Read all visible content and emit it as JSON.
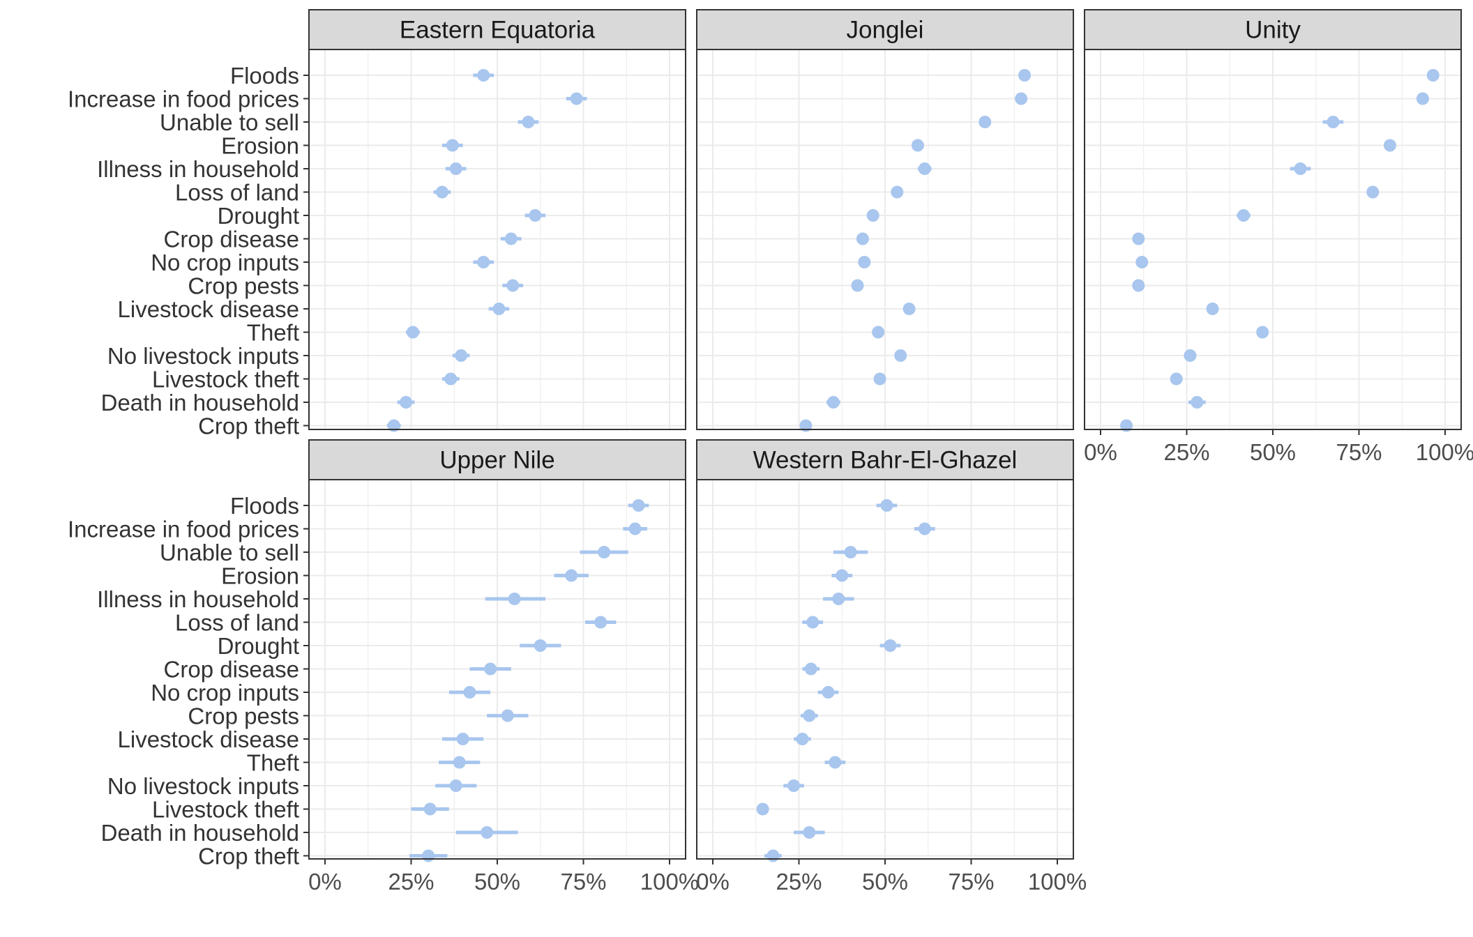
{
  "chart_data": {
    "type": "dot-errorbar-faceted",
    "title": "",
    "xlabel": "",
    "ylabel": "",
    "xlim": [
      0,
      1
    ],
    "x_ticks": [
      "0%",
      "25%",
      "50%",
      "75%",
      "100%"
    ],
    "grid": true,
    "point_color": "#A8C6EE",
    "categories": [
      "Floods",
      "Increase in food prices",
      "Unable to sell",
      "Erosion",
      "Illness in household",
      "Loss of land",
      "Drought",
      "Crop disease",
      "No crop inputs",
      "Crop pests",
      "Livestock disease",
      "Theft",
      "No livestock inputs",
      "Livestock theft",
      "Death in household",
      "Crop theft"
    ],
    "panels": [
      {
        "name": "Eastern Equatoria",
        "values": [
          0.46,
          0.73,
          0.59,
          0.37,
          0.38,
          0.34,
          0.61,
          0.54,
          0.46,
          0.545,
          0.505,
          0.255,
          0.395,
          0.365,
          0.235,
          0.2
        ],
        "lower": [
          0.43,
          0.7,
          0.56,
          0.34,
          0.35,
          0.315,
          0.58,
          0.51,
          0.43,
          0.515,
          0.475,
          0.235,
          0.37,
          0.34,
          0.21,
          0.18
        ],
        "upper": [
          0.49,
          0.76,
          0.62,
          0.4,
          0.41,
          0.365,
          0.64,
          0.57,
          0.49,
          0.575,
          0.535,
          0.275,
          0.42,
          0.39,
          0.26,
          0.22
        ]
      },
      {
        "name": "Jonglei",
        "values": [
          0.905,
          0.895,
          0.79,
          0.595,
          0.615,
          0.535,
          0.465,
          0.435,
          0.44,
          0.42,
          0.57,
          0.48,
          0.545,
          0.485,
          0.35,
          0.27
        ],
        "lower": [
          0.89,
          0.88,
          0.775,
          0.58,
          0.595,
          0.52,
          0.45,
          0.42,
          0.425,
          0.405,
          0.555,
          0.465,
          0.53,
          0.47,
          0.33,
          0.255
        ],
        "upper": [
          0.92,
          0.91,
          0.805,
          0.61,
          0.635,
          0.55,
          0.48,
          0.45,
          0.455,
          0.435,
          0.585,
          0.495,
          0.56,
          0.5,
          0.37,
          0.285
        ]
      },
      {
        "name": "Unity",
        "values": [
          0.965,
          0.935,
          0.675,
          0.84,
          0.58,
          0.79,
          0.415,
          0.11,
          0.12,
          0.11,
          0.325,
          0.47,
          0.26,
          0.22,
          0.28,
          0.075
        ],
        "lower": [
          0.955,
          0.925,
          0.645,
          0.83,
          0.55,
          0.78,
          0.395,
          0.1,
          0.11,
          0.1,
          0.31,
          0.455,
          0.245,
          0.205,
          0.255,
          0.065
        ],
        "upper": [
          0.975,
          0.945,
          0.705,
          0.85,
          0.61,
          0.8,
          0.435,
          0.12,
          0.13,
          0.12,
          0.34,
          0.485,
          0.275,
          0.235,
          0.305,
          0.085
        ]
      },
      {
        "name": "Upper Nile",
        "values": [
          0.91,
          0.9,
          0.81,
          0.715,
          0.55,
          0.8,
          0.625,
          0.48,
          0.42,
          0.53,
          0.4,
          0.39,
          0.38,
          0.305,
          0.47,
          0.3
        ],
        "lower": [
          0.88,
          0.865,
          0.74,
          0.665,
          0.465,
          0.755,
          0.565,
          0.42,
          0.36,
          0.47,
          0.34,
          0.33,
          0.32,
          0.25,
          0.38,
          0.245
        ],
        "upper": [
          0.94,
          0.935,
          0.88,
          0.765,
          0.64,
          0.845,
          0.685,
          0.54,
          0.48,
          0.59,
          0.46,
          0.45,
          0.44,
          0.36,
          0.56,
          0.355
        ]
      },
      {
        "name": "Western Bahr-El-Ghazel",
        "values": [
          0.505,
          0.615,
          0.4,
          0.375,
          0.365,
          0.29,
          0.515,
          0.285,
          0.335,
          0.28,
          0.26,
          0.355,
          0.235,
          0.145,
          0.28,
          0.175
        ],
        "lower": [
          0.475,
          0.585,
          0.35,
          0.345,
          0.32,
          0.26,
          0.485,
          0.26,
          0.305,
          0.255,
          0.235,
          0.325,
          0.205,
          0.13,
          0.235,
          0.15
        ],
        "upper": [
          0.535,
          0.645,
          0.45,
          0.405,
          0.41,
          0.32,
          0.545,
          0.31,
          0.365,
          0.305,
          0.285,
          0.385,
          0.265,
          0.16,
          0.325,
          0.2
        ]
      }
    ]
  }
}
